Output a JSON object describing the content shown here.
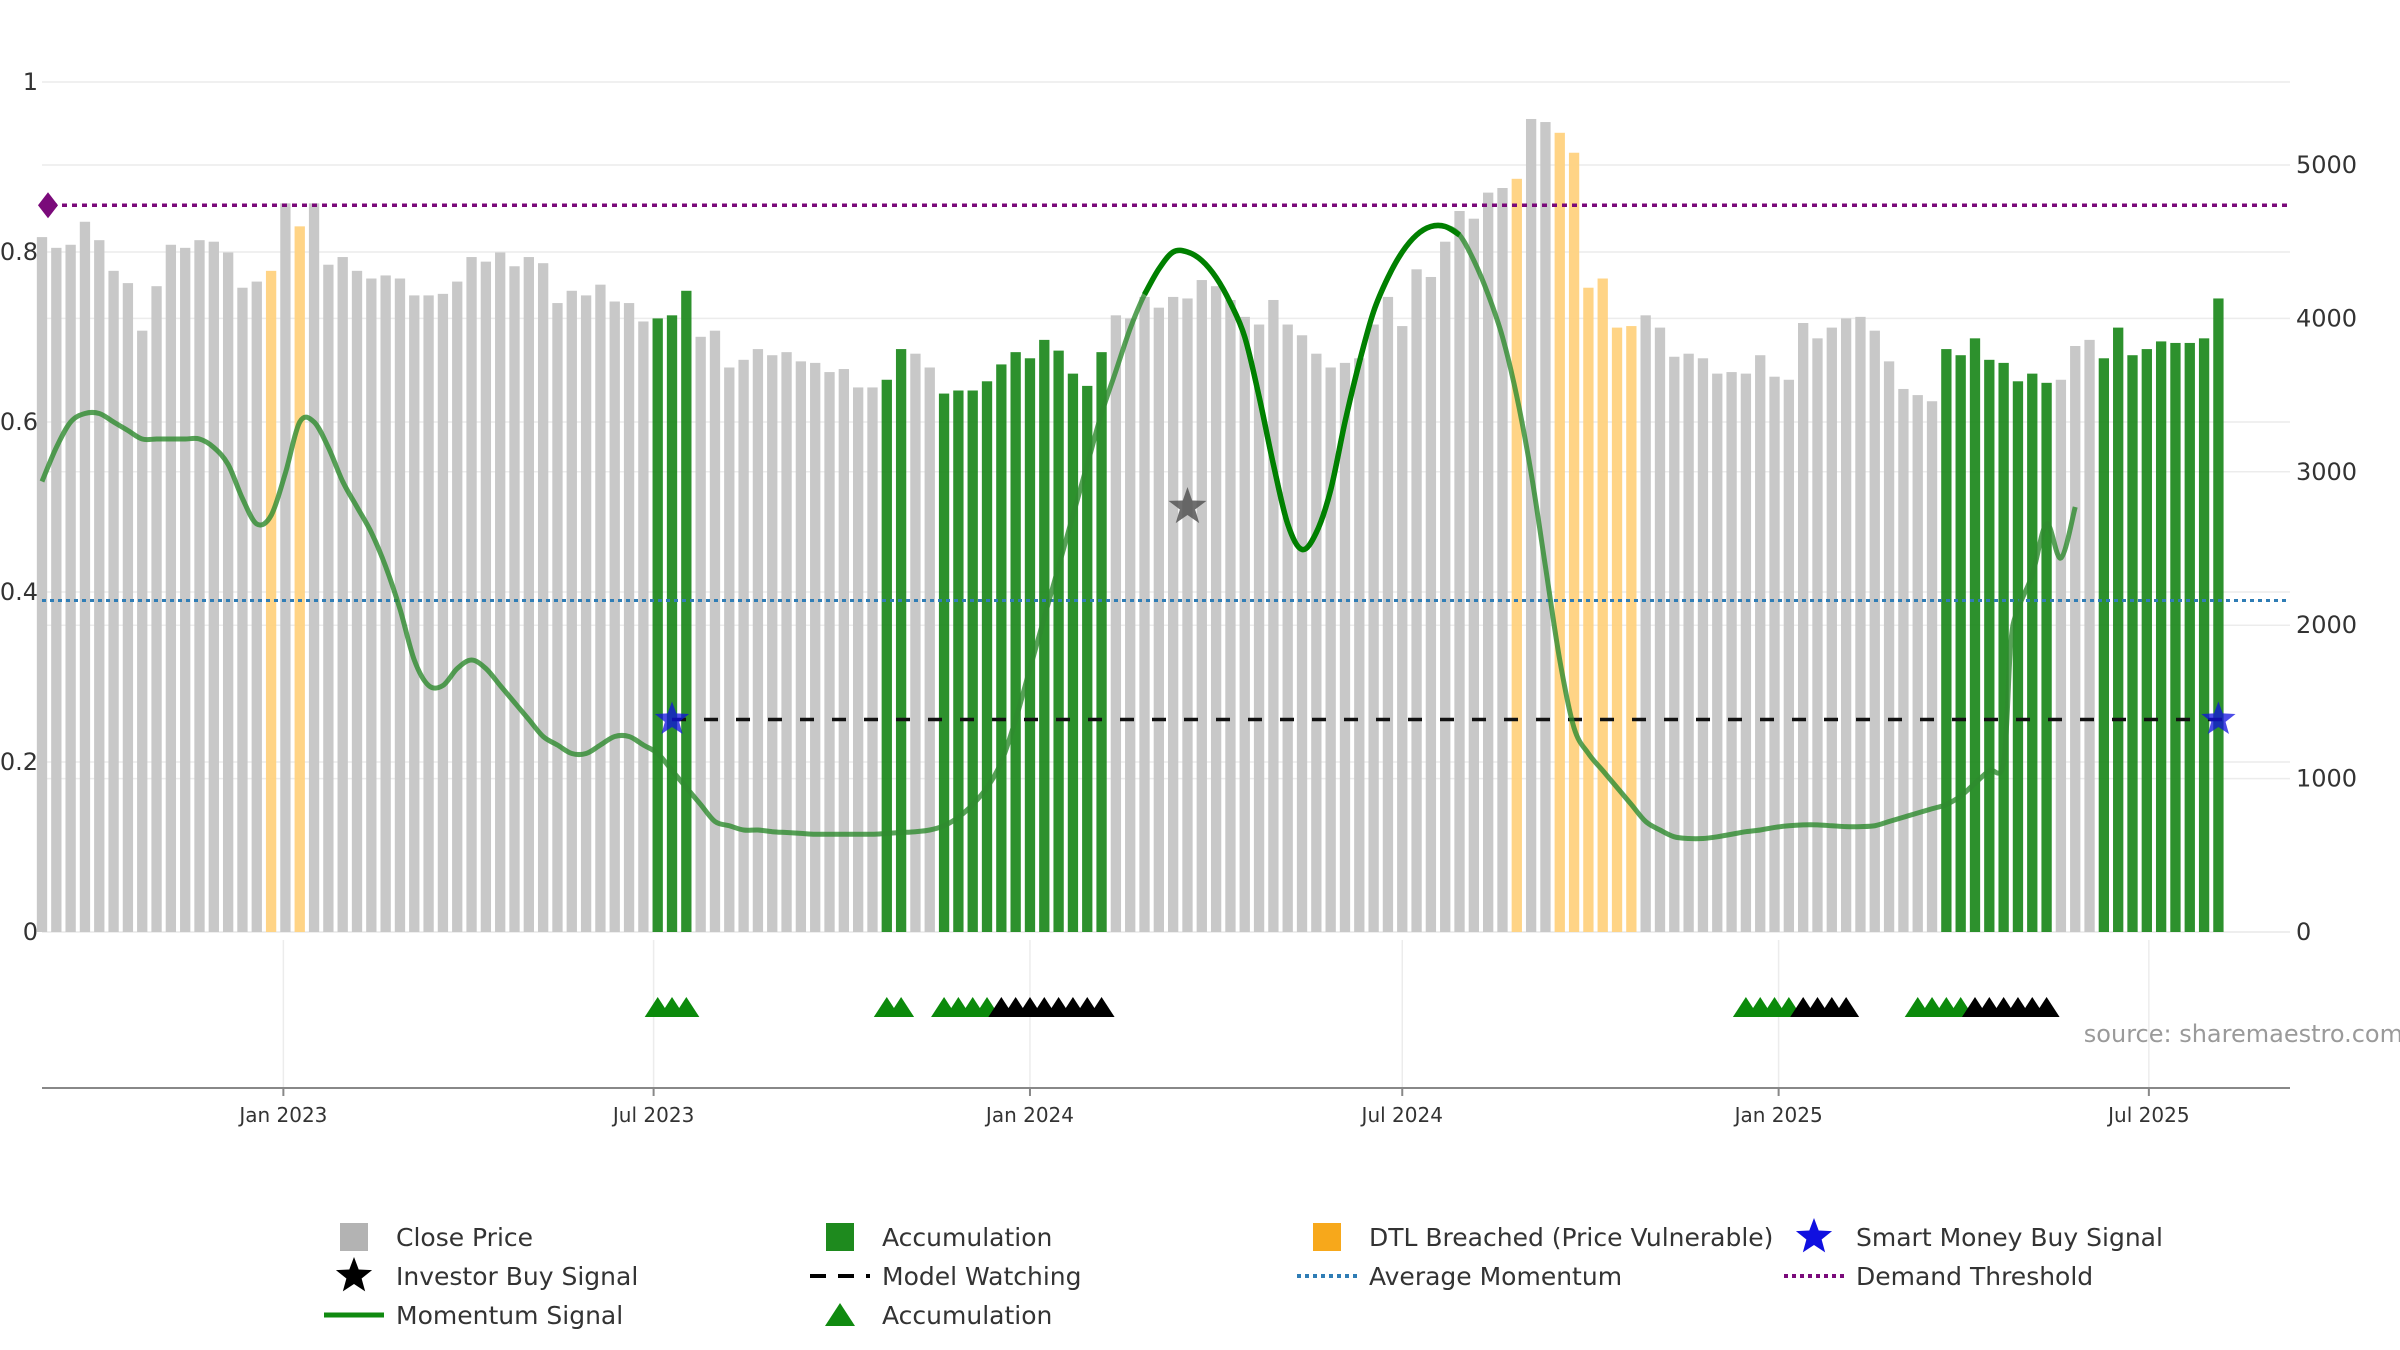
{
  "chart_data": {
    "type": "bar",
    "source": "source: sharemaestro.com",
    "left_axis": {
      "range": [
        0,
        1
      ],
      "ticks": [
        0,
        0.2,
        0.4,
        0.6,
        0.8,
        1
      ],
      "tick_labels": [
        "0",
        "0.2",
        "0.4",
        "0.6",
        "0.8",
        "1"
      ]
    },
    "right_axis": {
      "range": [
        0,
        5500
      ],
      "ticks": [
        0,
        1000,
        2000,
        3000,
        4000,
        5000
      ],
      "tick_labels": [
        "0",
        "1000",
        "2000",
        "3000",
        "4000",
        "5000"
      ]
    },
    "x_axis": {
      "range": [
        "2022-09-05",
        "2025-09-08"
      ],
      "ticks": [
        {
          "date": "2023-01-01",
          "label": "Jan 2023"
        },
        {
          "date": "2023-07-01",
          "label": "Jul 2023"
        },
        {
          "date": "2024-01-01",
          "label": "Jan 2024"
        },
        {
          "date": "2024-07-01",
          "label": "Jul 2024"
        },
        {
          "date": "2025-01-01",
          "label": "Jan 2025"
        },
        {
          "date": "2025-07-01",
          "label": "Jul 2025"
        }
      ]
    },
    "bar_start": "2022-09-05",
    "bar_step_days": 7,
    "close_price": [
      4530,
      4460,
      4480,
      4630,
      4510,
      4310,
      4230,
      3920,
      4210,
      4480,
      4460,
      4510,
      4500,
      4430,
      4200,
      4240,
      4310,
      4750,
      4600,
      4750,
      4350,
      4400,
      4310,
      4260,
      4280,
      4260,
      4150,
      4150,
      4160,
      4240,
      4400,
      4370,
      4430,
      4340,
      4400,
      4360,
      4100,
      4180,
      4150,
      4220,
      4110,
      4100,
      3980,
      4000,
      4020,
      4180,
      3880,
      3920,
      3680,
      3730,
      3800,
      3760,
      3780,
      3720,
      3710,
      3650,
      3670,
      3550,
      3550,
      3600,
      3800,
      3770,
      3680,
      3510,
      3530,
      3530,
      3590,
      3700,
      3780,
      3740,
      3860,
      3790,
      3640,
      3560,
      3780,
      4020,
      4000,
      4140,
      4070,
      4140,
      4130,
      4250,
      4210,
      4120,
      4010,
      3960,
      4120,
      3960,
      3890,
      3770,
      3680,
      3710,
      3740,
      3960,
      4140,
      3950,
      4320,
      4270,
      4500,
      4700,
      4650,
      4820,
      4850,
      4910,
      5300,
      5280,
      5210,
      5080,
      4200,
      4260,
      3940,
      3950,
      4020,
      3940,
      3750,
      3770,
      3740,
      3640,
      3650,
      3640,
      3760,
      3620,
      3600,
      3970,
      3870,
      3940,
      4000,
      4010,
      3920,
      3720,
      3540,
      3500,
      3460,
      3800,
      3760,
      3870,
      3730,
      3710,
      3590,
      3640,
      3580,
      3600,
      3820,
      3860,
      3740,
      3940,
      3760,
      3800,
      3850,
      3840,
      3840,
      3870,
      4130
    ],
    "bar_highlights": [
      {
        "kind": "dtl",
        "from": 16,
        "to": 16
      },
      {
        "kind": "dtl",
        "from": 18,
        "to": 18
      },
      {
        "kind": "accum",
        "from": 43,
        "to": 45
      },
      {
        "kind": "accum",
        "from": 59,
        "to": 60
      },
      {
        "kind": "accum",
        "from": 63,
        "to": 74
      },
      {
        "kind": "dtl",
        "from": 103,
        "to": 103
      },
      {
        "kind": "dtl",
        "from": 106,
        "to": 111
      },
      {
        "kind": "accum",
        "from": 133,
        "to": 140
      },
      {
        "kind": "accum",
        "from": 144,
        "to": 154
      }
    ],
    "momentum_signal": [
      [
        0,
        0.53
      ],
      [
        1,
        0.57
      ],
      [
        2,
        0.6
      ],
      [
        3,
        0.61
      ],
      [
        4,
        0.61
      ],
      [
        5,
        0.6
      ],
      [
        6,
        0.59
      ],
      [
        7,
        0.58
      ],
      [
        8,
        0.58
      ],
      [
        9,
        0.58
      ],
      [
        10,
        0.58
      ],
      [
        11,
        0.58
      ],
      [
        12,
        0.57
      ],
      [
        13,
        0.55
      ],
      [
        14,
        0.51
      ],
      [
        15,
        0.48
      ],
      [
        16,
        0.49
      ],
      [
        17,
        0.54
      ],
      [
        18,
        0.6
      ],
      [
        19,
        0.6
      ],
      [
        20,
        0.57
      ],
      [
        21,
        0.53
      ],
      [
        22,
        0.5
      ],
      [
        23,
        0.47
      ],
      [
        24,
        0.43
      ],
      [
        25,
        0.38
      ],
      [
        26,
        0.32
      ],
      [
        27,
        0.29
      ],
      [
        28,
        0.29
      ],
      [
        29,
        0.31
      ],
      [
        30,
        0.32
      ],
      [
        31,
        0.31
      ],
      [
        32,
        0.29
      ],
      [
        33,
        0.27
      ],
      [
        34,
        0.25
      ],
      [
        35,
        0.23
      ],
      [
        36,
        0.22
      ],
      [
        37,
        0.21
      ],
      [
        38,
        0.21
      ],
      [
        39,
        0.22
      ],
      [
        40,
        0.23
      ],
      [
        41,
        0.23
      ],
      [
        42,
        0.22
      ],
      [
        43,
        0.21
      ],
      [
        44,
        0.19
      ],
      [
        45,
        0.17
      ],
      [
        46,
        0.15
      ],
      [
        47,
        0.13
      ],
      [
        48,
        0.125
      ],
      [
        49,
        0.12
      ],
      [
        50,
        0.12
      ],
      [
        51,
        0.118
      ],
      [
        52,
        0.117
      ],
      [
        53,
        0.116
      ],
      [
        54,
        0.115
      ],
      [
        55,
        0.115
      ],
      [
        56,
        0.115
      ],
      [
        57,
        0.115
      ],
      [
        58,
        0.115
      ],
      [
        59,
        0.116
      ],
      [
        60,
        0.117
      ],
      [
        61,
        0.118
      ],
      [
        62,
        0.12
      ],
      [
        63,
        0.125
      ],
      [
        64,
        0.135
      ],
      [
        65,
        0.15
      ],
      [
        66,
        0.17
      ],
      [
        67,
        0.2
      ],
      [
        68,
        0.25
      ],
      [
        69,
        0.31
      ],
      [
        70,
        0.37
      ],
      [
        71,
        0.43
      ],
      [
        72,
        0.49
      ],
      [
        73,
        0.55
      ],
      [
        74,
        0.61
      ],
      [
        75,
        0.66
      ],
      [
        76,
        0.71
      ],
      [
        77,
        0.75
      ],
      [
        78,
        0.78
      ],
      [
        79,
        0.8
      ],
      [
        80,
        0.8
      ],
      [
        81,
        0.79
      ],
      [
        82,
        0.77
      ],
      [
        83,
        0.74
      ],
      [
        84,
        0.7
      ],
      [
        85,
        0.63
      ],
      [
        86,
        0.55
      ],
      [
        87,
        0.48
      ],
      [
        88,
        0.45
      ],
      [
        89,
        0.47
      ],
      [
        90,
        0.52
      ],
      [
        91,
        0.6
      ],
      [
        92,
        0.67
      ],
      [
        93,
        0.73
      ],
      [
        94,
        0.77
      ],
      [
        95,
        0.8
      ],
      [
        96,
        0.82
      ],
      [
        97,
        0.83
      ],
      [
        98,
        0.83
      ],
      [
        99,
        0.82
      ],
      [
        100,
        0.79
      ],
      [
        101,
        0.75
      ],
      [
        102,
        0.7
      ],
      [
        103,
        0.63
      ],
      [
        104,
        0.54
      ],
      [
        105,
        0.43
      ],
      [
        106,
        0.32
      ],
      [
        107,
        0.24
      ],
      [
        108,
        0.21
      ],
      [
        109,
        0.19
      ],
      [
        110,
        0.17
      ],
      [
        111,
        0.15
      ],
      [
        112,
        0.13
      ],
      [
        113,
        0.12
      ],
      [
        114,
        0.112
      ],
      [
        115,
        0.11
      ],
      [
        116,
        0.11
      ],
      [
        117,
        0.112
      ],
      [
        118,
        0.115
      ],
      [
        119,
        0.118
      ],
      [
        120,
        0.12
      ],
      [
        121,
        0.123
      ],
      [
        122,
        0.125
      ],
      [
        123,
        0.126
      ],
      [
        124,
        0.126
      ],
      [
        125,
        0.125
      ],
      [
        126,
        0.124
      ],
      [
        127,
        0.124
      ],
      [
        128,
        0.125
      ],
      [
        129,
        0.13
      ],
      [
        130,
        0.135
      ],
      [
        131,
        0.14
      ],
      [
        132,
        0.145
      ],
      [
        133,
        0.15
      ],
      [
        134,
        0.16
      ],
      [
        135,
        0.175
      ],
      [
        136,
        0.19
      ],
      [
        137,
        0.2
      ],
      [
        137.5,
        0.34
      ],
      [
        138,
        0.38
      ],
      [
        139,
        0.42
      ],
      [
        140,
        0.48
      ],
      [
        141,
        0.44
      ],
      [
        142,
        0.5
      ]
    ],
    "momentum_bold_segment": [
      77,
      99
    ],
    "average_momentum": 0.39,
    "demand_threshold": 0.855,
    "model_watching": {
      "from": 44,
      "to": 152,
      "value": 0.25
    },
    "smart_money_buy_signals": [
      {
        "x": 44,
        "y": 0.25
      },
      {
        "x": 152,
        "y": 0.25
      }
    ],
    "investor_buy_signals": [
      {
        "x": 80,
        "y": 0.5
      }
    ],
    "accumulation_markers": {
      "green": [
        43,
        44,
        45,
        59,
        60,
        63,
        64,
        65,
        66,
        119,
        120,
        121,
        122,
        131,
        132,
        133,
        134
      ],
      "black": [
        67,
        68,
        69,
        70,
        71,
        72,
        73,
        74,
        123,
        124,
        125,
        126,
        135,
        136,
        137,
        138,
        139,
        140
      ]
    },
    "legend": [
      {
        "symbol": "grey-square",
        "label": "Close Price"
      },
      {
        "symbol": "green-square",
        "label": "Accumulation"
      },
      {
        "symbol": "orange-square",
        "label": "DTL Breached (Price Vulnerable)"
      },
      {
        "symbol": "blue-star",
        "label": "Smart Money Buy Signal"
      },
      {
        "symbol": "black-star",
        "label": "Investor Buy Signal"
      },
      {
        "symbol": "black-dash",
        "label": "Model Watching"
      },
      {
        "symbol": "blue-dot-line",
        "label": "Average Momentum"
      },
      {
        "symbol": "purple-dot-line",
        "label": "Demand Threshold"
      },
      {
        "symbol": "green-line",
        "label": "Momentum Signal"
      },
      {
        "symbol": "green-triangle",
        "label": "Accumulation"
      }
    ],
    "colors": {
      "close": "#c8c8c8",
      "accum": "#228B22",
      "dtl": "#FFD27F",
      "momentum": "#2E8B2E",
      "momentum_bold": "#008000",
      "avg_momentum": "#2F7DB5",
      "threshold": "#7A0A7A",
      "watching": "#111111",
      "smart_star": "#1010E0",
      "investor_star": "#000000",
      "tri_green": "#0B8A0B",
      "tri_black": "#000000",
      "grid": "#ececec",
      "axis": "#888888"
    }
  }
}
